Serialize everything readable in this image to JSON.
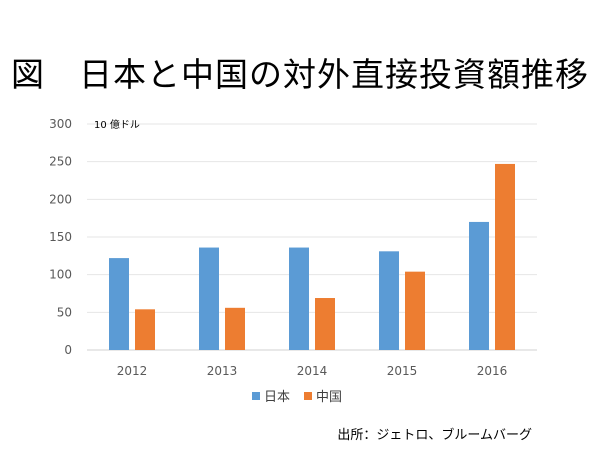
{
  "title": "図　日本と中国の対外直接投資額推移",
  "source": "出所：ジェトロ、ブルームバーグ",
  "chart_data": {
    "type": "bar",
    "title": "図　日本と中国の対外直接投資額推移",
    "ylabel": "10 億ドル",
    "xlabel": "",
    "categories": [
      "2012",
      "2013",
      "2014",
      "2015",
      "2016"
    ],
    "series": [
      {
        "name": "日本",
        "color": "#5B9BD5",
        "values": [
          122,
          136,
          136,
          131,
          170
        ]
      },
      {
        "name": "中国",
        "color": "#ED7D31",
        "values": [
          54,
          56,
          69,
          104,
          247
        ]
      }
    ],
    "ylim": [
      0,
      300
    ],
    "yticks": [
      0,
      50,
      100,
      150,
      200,
      250,
      300
    ],
    "grid": true,
    "legend": "bottom"
  }
}
